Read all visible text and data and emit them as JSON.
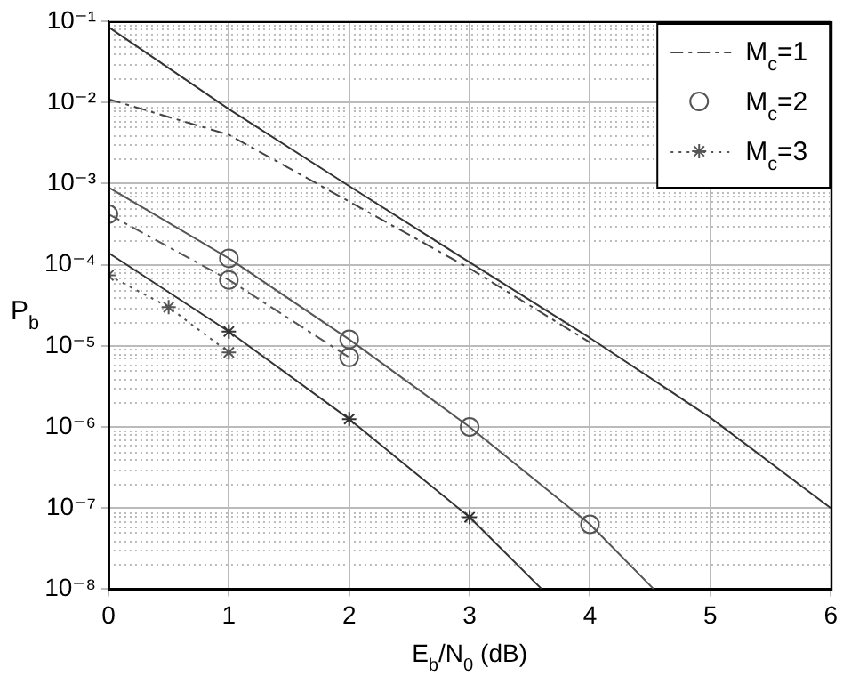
{
  "chart_data": {
    "type": "line",
    "xlabel": "E$_{b}$/N$_{0}$ (dB)",
    "ylabel": "P$_{b}$",
    "log": "y",
    "grid": true,
    "legend": "top right",
    "xlim": [
      0,
      6
    ],
    "xticks": [
      0,
      1,
      2,
      3,
      4,
      5,
      6
    ],
    "ylim": [
      1e-08,
      0.1
    ],
    "yticks": [
      {
        "value": 1e-08,
        "label": "10⁻⁸"
      },
      {
        "value": 1e-07,
        "label": "10⁻⁷"
      },
      {
        "value": 1e-06,
        "label": "10⁻⁶"
      },
      {
        "value": 1e-05,
        "label": "10⁻⁵"
      },
      {
        "value": 0.0001,
        "label": "10⁻⁴"
      },
      {
        "value": 0.001,
        "label": "10⁻³"
      },
      {
        "value": 0.01,
        "label": "10⁻²"
      },
      {
        "value": 0.1,
        "label": "10⁻¹"
      }
    ],
    "series": [
      {
        "type": "line",
        "color": "#333333",
        "line_style": "solid",
        "marker": "none",
        "x": [
          0,
          1,
          2,
          3,
          4,
          5,
          6
        ],
        "values": [
          0.085,
          0.0083,
          0.00093,
          0.000107,
          1.25e-05,
          1.3e-06,
          1e-07
        ]
      },
      {
        "name": "M$_{c}$=1",
        "type": "line",
        "color": "#444444",
        "line_style": "dashed",
        "marker": "none",
        "x": [
          0,
          1,
          2,
          3,
          4
        ],
        "values": [
          0.011,
          0.004,
          0.0006,
          9e-05,
          1.1e-05
        ]
      },
      {
        "type": "line",
        "color": "#555555",
        "line_style": "solid",
        "marker": "none",
        "x": [
          0,
          1,
          2,
          3,
          4,
          4.53
        ],
        "values": [
          0.0009,
          0.00012,
          1.2e-05,
          1e-06,
          6.3e-08,
          1e-08
        ]
      },
      {
        "name": "M$_{c}$=2",
        "type": "scatter",
        "color": "#555555",
        "marker": "circle",
        "x": [
          1,
          2,
          3,
          4
        ],
        "values": [
          0.00012,
          1.2e-05,
          1e-06,
          6.3e-08
        ]
      },
      {
        "type": "line",
        "color": "#555555",
        "line_style": "dashed",
        "marker": "circle",
        "x": [
          0,
          1,
          2
        ],
        "values": [
          0.00042,
          6.5e-05,
          7.2e-06
        ]
      },
      {
        "type": "line",
        "color": "#333333",
        "line_style": "solid",
        "marker": "none",
        "x": [
          0,
          1,
          2,
          3,
          3.6
        ],
        "values": [
          0.00014,
          1.5e-05,
          1.25e-06,
          7.7e-08,
          1e-08
        ]
      },
      {
        "type": "scatter",
        "color": "#333333",
        "marker": "cross",
        "x": [
          1,
          2,
          3
        ],
        "values": [
          1.5e-05,
          1.25e-06,
          7.7e-08
        ]
      },
      {
        "name": "M$_{c}$=3",
        "type": "line",
        "color": "#555555",
        "line_style": "dotted",
        "marker": "cross",
        "x": [
          0,
          0.5,
          1
        ],
        "values": [
          7.4e-05,
          3e-05,
          8.3e-06
        ]
      }
    ]
  }
}
